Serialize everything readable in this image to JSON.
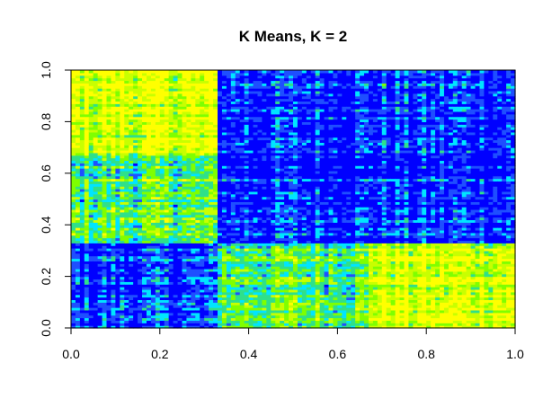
{
  "chart_data": {
    "type": "heatmap",
    "title": "K Means, K = 2",
    "xlabel": "",
    "ylabel": "",
    "xlim": [
      0,
      1
    ],
    "ylim": [
      0,
      1
    ],
    "x_ticks": [
      "0.0",
      "0.2",
      "0.4",
      "0.6",
      "0.8",
      "1.0"
    ],
    "y_ticks": [
      "0.0",
      "0.2",
      "0.4",
      "0.6",
      "0.8",
      "1.0"
    ],
    "grid": false,
    "legend": "none",
    "colormap": [
      "#0000ff",
      "#1f4fff",
      "#00e5ff",
      "#2fe08a",
      "#7fff00",
      "#c8ff00",
      "#ffff00"
    ],
    "grid_size": 100,
    "cluster_boundaries": [
      0.33,
      0.67
    ],
    "blocks": [
      {
        "x": [
          0.0,
          0.33
        ],
        "y": [
          0.0,
          0.33
        ],
        "level": "low"
      },
      {
        "x": [
          0.0,
          0.33
        ],
        "y": [
          0.33,
          0.67
        ],
        "level": "high"
      },
      {
        "x": [
          0.0,
          0.33
        ],
        "y": [
          0.67,
          1.0
        ],
        "level": "very high"
      },
      {
        "x": [
          0.33,
          0.67
        ],
        "y": [
          0.0,
          0.33
        ],
        "level": "high"
      },
      {
        "x": [
          0.33,
          0.67
        ],
        "y": [
          0.33,
          0.67
        ],
        "level": "low"
      },
      {
        "x": [
          0.33,
          0.67
        ],
        "y": [
          0.67,
          1.0
        ],
        "level": "low"
      },
      {
        "x": [
          0.67,
          1.0
        ],
        "y": [
          0.0,
          0.33
        ],
        "level": "very high"
      },
      {
        "x": [
          0.67,
          1.0
        ],
        "y": [
          0.33,
          0.67
        ],
        "level": "low"
      },
      {
        "x": [
          0.67,
          1.0
        ],
        "y": [
          0.67,
          1.0
        ],
        "level": "low"
      }
    ]
  }
}
